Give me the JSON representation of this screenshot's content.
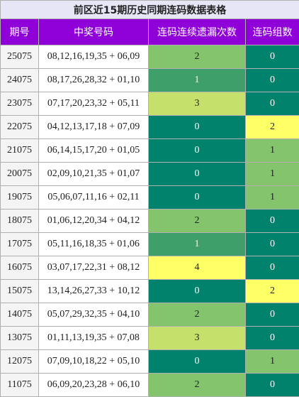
{
  "table": {
    "title": "前区近15期历史同期连码数据表格",
    "headers": [
      "期号",
      "中奖号码",
      "连码连续遗漏次数",
      "连码组数"
    ],
    "rows": [
      [
        "25075",
        "08,12,16,19,35 + 06,09",
        2,
        0
      ],
      [
        "24075",
        "08,17,26,28,32 + 01,10",
        1,
        0
      ],
      [
        "23075",
        "07,17,20,23,32 + 05,11",
        3,
        0
      ],
      [
        "22075",
        "04,12,13,17,18 + 07,09",
        0,
        2
      ],
      [
        "21075",
        "06,14,15,17,20 + 01,05",
        0,
        1
      ],
      [
        "20075",
        "02,09,10,21,35 + 01,07",
        0,
        1
      ],
      [
        "19075",
        "05,06,07,11,16 + 02,11",
        0,
        1
      ],
      [
        "18075",
        "01,06,12,20,34 + 04,12",
        2,
        0
      ],
      [
        "17075",
        "05,11,16,18,35 + 01,06",
        1,
        0
      ],
      [
        "16075",
        "03,07,17,22,31 + 08,12",
        4,
        0
      ],
      [
        "15075",
        "13,14,26,27,33 + 10,12",
        0,
        2
      ],
      [
        "14075",
        "05,07,29,32,35 + 04,10",
        2,
        0
      ],
      [
        "13075",
        "01,11,13,19,35 + 07,08",
        3,
        0
      ],
      [
        "12075",
        "07,09,10,18,22 + 05,10",
        0,
        1
      ],
      [
        "11075",
        "06,09,20,23,28 + 06,10",
        2,
        0
      ]
    ],
    "cell_colors": {
      "2": {
        "0": [
          "#00826c",
          "#ffffff"
        ],
        "1": [
          "#3f9f6b",
          "#e8f5e8"
        ],
        "2": [
          "#83c46c",
          "#222222"
        ],
        "3": [
          "#c5e16b",
          "#222222"
        ],
        "4": [
          "#ffff66",
          "#222222"
        ]
      },
      "3": {
        "0": [
          "#00826c",
          "#ffffff"
        ],
        "1": [
          "#83c46c",
          "#222222"
        ],
        "2": [
          "#ffff66",
          "#222222"
        ]
      }
    }
  }
}
